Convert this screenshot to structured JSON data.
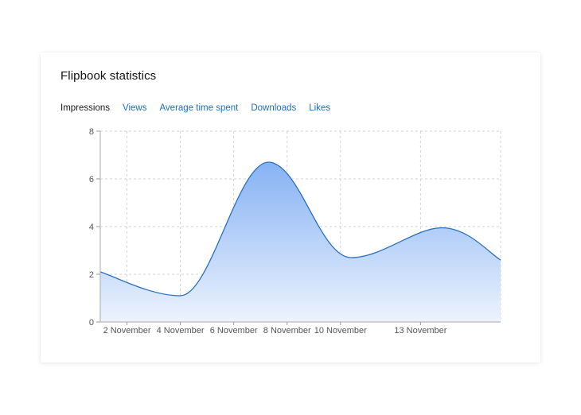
{
  "card": {
    "title": "Flipbook statistics"
  },
  "tabs": [
    {
      "label": "Impressions",
      "active": true
    },
    {
      "label": "Views",
      "active": false
    },
    {
      "label": "Average time spent",
      "active": false
    },
    {
      "label": "Downloads",
      "active": false
    },
    {
      "label": "Likes",
      "active": false
    }
  ],
  "colors": {
    "line": "#2a6fbf",
    "fill_top": "#86b2f3",
    "fill_bottom": "#ecf3fe",
    "grid": "#d2d2d2",
    "tab_link": "#1a6ec8"
  },
  "chart_data": {
    "type": "area",
    "x_tick_labels": [
      "2 November",
      "4 November",
      "6 November",
      "8 November",
      "10 November",
      "13 November"
    ],
    "x_tick_days": [
      2,
      4,
      6,
      8,
      10,
      13
    ],
    "x_range_days": [
      1,
      16
    ],
    "points": [
      {
        "day": 1.0,
        "value": 2.1
      },
      {
        "day": 4.0,
        "value": 1.1
      },
      {
        "day": 7.3,
        "value": 6.7
      },
      {
        "day": 10.4,
        "value": 2.7
      },
      {
        "day": 13.8,
        "value": 3.95
      },
      {
        "day": 16.0,
        "value": 2.6
      }
    ],
    "ylim": [
      0,
      8
    ],
    "y_ticks": [
      0,
      2,
      4,
      6,
      8
    ],
    "grid": true,
    "legend": "none"
  }
}
